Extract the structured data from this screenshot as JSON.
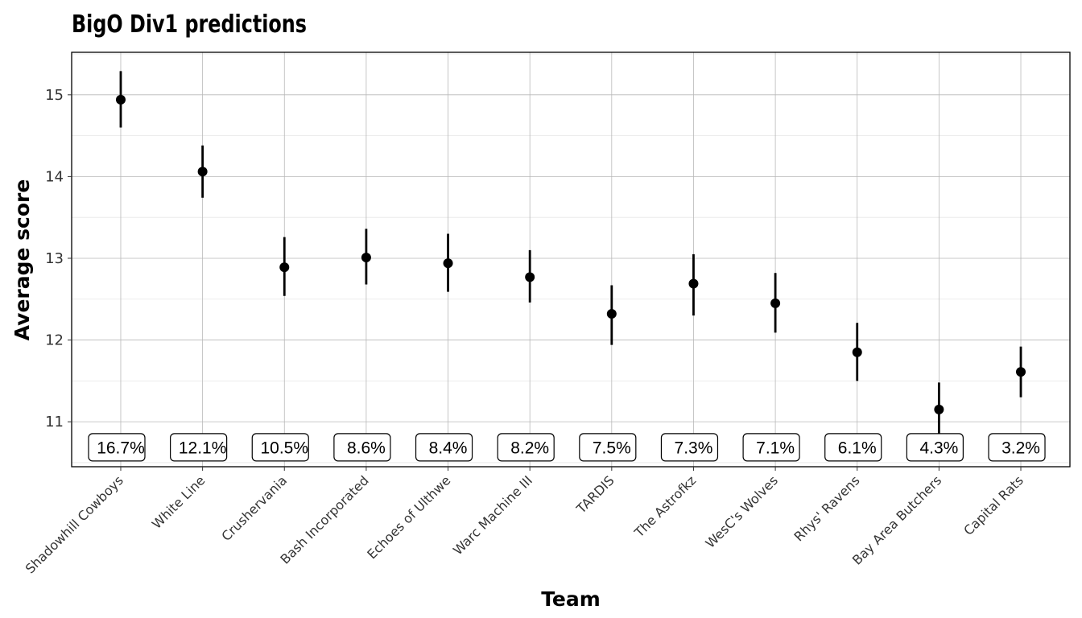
{
  "chart_data": {
    "type": "scatter",
    "title": "BigO Div1 predictions",
    "xlabel": "Team",
    "ylabel": "Average score",
    "ylim": [
      10.45,
      15.52
    ],
    "y_ticks": [
      11,
      12,
      13,
      14,
      15
    ],
    "grid": true,
    "categories": [
      "Shadowhill Cowboys",
      "White Line",
      "Crushervania",
      "Bash Incorporated",
      "Echoes of Ulthwe",
      "Warc Machine III",
      "TARDIS",
      "The Astrofkz",
      "WesC's Wolves",
      "Rhys' Ravens",
      "Bay Area Butchers",
      "Capital Rats"
    ],
    "series": [
      {
        "values": [
          14.94,
          14.06,
          12.89,
          13.01,
          12.94,
          12.77,
          12.32,
          12.69,
          12.45,
          11.85,
          11.15,
          11.61
        ],
        "lower": [
          14.6,
          13.74,
          12.54,
          12.68,
          12.59,
          12.46,
          11.94,
          12.3,
          12.09,
          11.5,
          10.81,
          11.3
        ],
        "upper": [
          15.29,
          14.38,
          13.26,
          13.36,
          13.3,
          13.1,
          12.67,
          13.05,
          12.82,
          12.21,
          11.48,
          11.92
        ]
      }
    ],
    "labels": [
      "16.7%",
      "12.1%",
      "10.5%",
      "8.6%",
      "8.4%",
      "8.2%",
      "7.5%",
      "7.3%",
      "7.1%",
      "6.1%",
      "4.3%",
      "3.2%"
    ],
    "label_y": 10.52
  }
}
